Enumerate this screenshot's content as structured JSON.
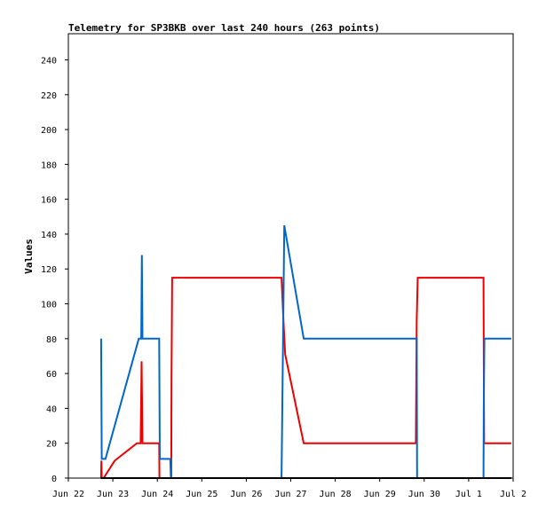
{
  "chart_data": {
    "type": "line",
    "title": "Telemetry for SP3BKB over last 240 hours (263 points)",
    "ylabel": "Values",
    "xlabel": "",
    "x_ticks": [
      "Jun 22",
      "Jun 23",
      "Jun 24",
      "Jun 25",
      "Jun 26",
      "Jun 27",
      "Jun 28",
      "Jun 29",
      "Jun 30",
      "Jul 1",
      "Jul 2"
    ],
    "y_ticks": [
      0,
      20,
      40,
      60,
      80,
      100,
      120,
      140,
      160,
      180,
      200,
      220,
      240
    ],
    "xlim": [
      "Jun 22 00:00",
      "Jul 2 00:00"
    ],
    "ylim": [
      0,
      255
    ],
    "grid": false,
    "legend": "none",
    "colors": {
      "red_series": "#ee0000",
      "blue_series": "#0066cc",
      "black_series": "#000000"
    },
    "series": [
      {
        "color": "#ee0000",
        "points": [
          [
            "Jun 22 17:40",
            0
          ],
          [
            "Jun 22 17:50",
            10
          ],
          [
            "Jun 22 18:00",
            0
          ],
          [
            "Jun 22 19:00",
            0
          ],
          [
            "Jun 23 01:00",
            10
          ],
          [
            "Jun 23 13:00",
            20
          ],
          [
            "Jun 23 15:00",
            20
          ],
          [
            "Jun 23 15:30",
            67
          ],
          [
            "Jun 23 16:00",
            20
          ],
          [
            "Jun 24 01:00",
            20
          ],
          [
            "Jun 24 01:10",
            0
          ],
          [
            "Jun 24 07:30",
            0
          ],
          [
            "Jun 24 07:40",
            58
          ],
          [
            "Jun 24 08:00",
            115
          ],
          [
            "Jun 26 19:00",
            115
          ],
          [
            "Jun 26 20:00",
            92
          ],
          [
            "Jun 26 21:00",
            71
          ],
          [
            "Jun 27 07:00",
            20
          ],
          [
            "Jun 29 19:30",
            20
          ],
          [
            "Jun 29 20:00",
            91
          ],
          [
            "Jun 29 20:30",
            115
          ],
          [
            "Jul 1 08:00",
            115
          ],
          [
            "Jul 1 08:10",
            70
          ],
          [
            "Jul 1 08:20",
            20
          ],
          [
            "Jul 1 23:00",
            20
          ]
        ]
      },
      {
        "color": "#0066cc",
        "points": [
          [
            "Jun 22 17:40",
            80
          ],
          [
            "Jun 22 18:00",
            11
          ],
          [
            "Jun 22 20:00",
            11
          ],
          [
            "Jun 23 14:00",
            80
          ],
          [
            "Jun 23 15:20",
            80
          ],
          [
            "Jun 23 15:40",
            128
          ],
          [
            "Jun 23 16:00",
            80
          ],
          [
            "Jun 24 01:00",
            80
          ],
          [
            "Jun 24 01:20",
            11
          ],
          [
            "Jun 24 07:00",
            11
          ],
          [
            "Jun 24 07:20",
            0
          ],
          [
            "Jun 26 19:00",
            0
          ],
          [
            "Jun 26 19:30",
            46
          ],
          [
            "Jun 26 20:00",
            92
          ],
          [
            "Jun 26 20:30",
            145
          ],
          [
            "Jun 27 07:00",
            80
          ],
          [
            "Jun 29 20:00",
            80
          ],
          [
            "Jun 29 20:10",
            0
          ],
          [
            "Jul 1 08:00",
            0
          ],
          [
            "Jul 1 08:10",
            40
          ],
          [
            "Jul 1 08:30",
            80
          ],
          [
            "Jul 1 23:00",
            80
          ]
        ]
      },
      {
        "color": "#000000",
        "points": [
          [
            "Jun 22 17:40",
            0
          ],
          [
            "Jul 1 23:00",
            0
          ]
        ]
      }
    ]
  }
}
